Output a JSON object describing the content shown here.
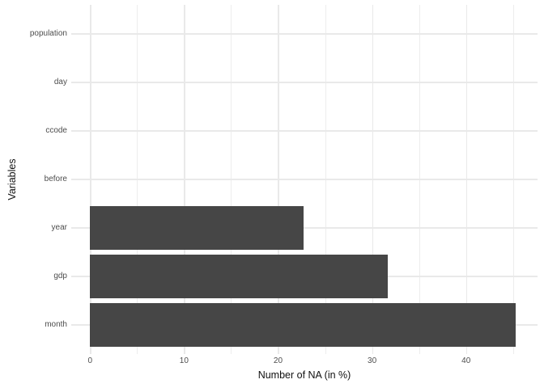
{
  "chart_data": {
    "type": "bar",
    "orientation": "horizontal",
    "title": "",
    "xlabel": "Number of NA (in %)",
    "ylabel": "Variables",
    "categories": [
      "population",
      "day",
      "ccode",
      "before",
      "year",
      "gdp",
      "month"
    ],
    "values": [
      0,
      0,
      0,
      0,
      22.7,
      31.7,
      45.3
    ],
    "x_ticks": [
      0,
      10,
      20,
      30,
      40
    ],
    "x_minor_ticks": [
      5,
      15,
      25,
      35,
      45
    ],
    "x_range_display": [
      -2,
      47.6
    ],
    "bar_width_fraction": 0.9,
    "row_edge_expansion": 0.6,
    "grid": true,
    "legend": "none",
    "colors": {
      "background": "#ffffff",
      "bar_fill": "#464646",
      "grid_major": "#e9e9e9",
      "grid_minor": "#ededed",
      "tick_label": "#4d4d4d",
      "axis_title": "#111111"
    }
  }
}
